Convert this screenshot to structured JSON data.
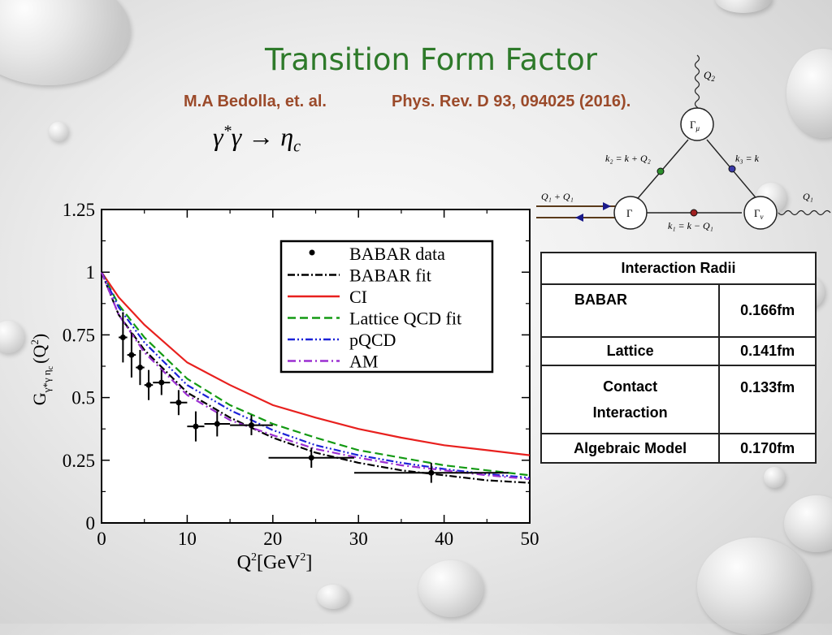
{
  "slide": {
    "title": "Transition Form Factor",
    "author": "M.A Bedolla, et. al.",
    "journal": "Phys. Rev. D 93, 094025 (2016).",
    "reaction": {
      "lhs": "γ",
      "lhs_star": "*",
      "mid": "γ → η",
      "sub": "c"
    }
  },
  "feynman": {
    "Q2": "Q",
    "Q2_sub": "2",
    "Gamma_mu": "Γ",
    "Gamma_mu_sub": "μ",
    "k2": "k₂ = k + Q₂",
    "k3": "k₃ = k",
    "k1": "k₁ = k − Q₁",
    "Q1Q2": "Q₁ + Q₁",
    "Q1": "Q₁",
    "Gamma": "Γ",
    "Gamma_nu": "Γ",
    "Gamma_nu_sub": "ν"
  },
  "table": {
    "header": "Interaction Radii",
    "rows": [
      {
        "label": "BABAR",
        "value": "0.166fm"
      },
      {
        "label": "Lattice",
        "value": "0.141fm"
      },
      {
        "label": "Contact Interaction",
        "value": "0.133fm"
      },
      {
        "label": "Algebraic Model",
        "value": "0.170fm"
      }
    ]
  },
  "chart_data": {
    "type": "line",
    "xlabel_base": "Q",
    "xlabel_sup": "2",
    "xlabel_rest": "[GeV",
    "xlabel_sup2": "2",
    "xlabel_end": "]",
    "ylabel_base": "G",
    "ylabel_sub": "γ*γ η",
    "ylabel_sub2": "c",
    "ylabel_arg": "(Q",
    "ylabel_sup": "2",
    "ylabel_end": ")",
    "xlim": [
      0,
      50
    ],
    "ylim": [
      0,
      1.25
    ],
    "xticks": [
      0,
      10,
      20,
      30,
      40,
      50
    ],
    "yticks": [
      0,
      0.25,
      0.5,
      0.75,
      1,
      1.25
    ],
    "ytick_labels": [
      "0",
      "0.25",
      "0.5",
      "0.75",
      "1",
      "1.25"
    ],
    "legend_position": "top-right",
    "series": [
      {
        "name": "BABAR fit",
        "color": "#000000",
        "dash": "9,3,2,3",
        "x": [
          0,
          2,
          5,
          10,
          15,
          20,
          25,
          30,
          35,
          40,
          45,
          50
        ],
        "y": [
          1.0,
          0.83,
          0.69,
          0.52,
          0.42,
          0.34,
          0.28,
          0.24,
          0.21,
          0.19,
          0.17,
          0.16
        ]
      },
      {
        "name": "CI",
        "color": "#e8201e",
        "dash": "",
        "x": [
          0,
          2,
          5,
          10,
          15,
          20,
          25,
          30,
          35,
          40,
          45,
          50
        ],
        "y": [
          1.0,
          0.9,
          0.79,
          0.64,
          0.55,
          0.47,
          0.42,
          0.375,
          0.34,
          0.31,
          0.29,
          0.27
        ]
      },
      {
        "name": "Lattice QCD fit",
        "color": "#139a13",
        "dash": "10,5",
        "x": [
          0,
          2,
          5,
          10,
          15,
          20,
          25,
          30,
          35,
          40,
          45,
          50
        ],
        "y": [
          1.0,
          0.87,
          0.74,
          0.575,
          0.47,
          0.395,
          0.34,
          0.29,
          0.26,
          0.23,
          0.21,
          0.19
        ]
      },
      {
        "name": "pQCD",
        "color": "#1c23d8",
        "dash": "9,3,2,3,2,3",
        "x": [
          0,
          2,
          5,
          10,
          15,
          20,
          25,
          30,
          35,
          40,
          45,
          50
        ],
        "y": [
          1.0,
          0.86,
          0.72,
          0.55,
          0.45,
          0.37,
          0.31,
          0.27,
          0.24,
          0.215,
          0.195,
          0.18
        ]
      },
      {
        "name": "AM",
        "color": "#9b2fd1",
        "dash": "10,4,2,4",
        "x": [
          0,
          2,
          5,
          10,
          15,
          20,
          25,
          30,
          35,
          40,
          45,
          50
        ],
        "y": [
          1.0,
          0.83,
          0.68,
          0.51,
          0.41,
          0.35,
          0.295,
          0.26,
          0.23,
          0.21,
          0.19,
          0.175
        ]
      }
    ],
    "points": {
      "name": "BABAR data",
      "data": [
        {
          "x": 2.5,
          "y": 0.74,
          "ex": 0.5,
          "ey": 0.1
        },
        {
          "x": 3.5,
          "y": 0.67,
          "ex": 0.5,
          "ey": 0.09
        },
        {
          "x": 4.5,
          "y": 0.62,
          "ex": 0.5,
          "ey": 0.07
        },
        {
          "x": 5.5,
          "y": 0.55,
          "ex": 0.5,
          "ey": 0.06
        },
        {
          "x": 7.0,
          "y": 0.56,
          "ex": 1.0,
          "ey": 0.05
        },
        {
          "x": 9.0,
          "y": 0.48,
          "ex": 1.0,
          "ey": 0.05
        },
        {
          "x": 11.0,
          "y": 0.385,
          "ex": 1.0,
          "ey": 0.06
        },
        {
          "x": 13.5,
          "y": 0.395,
          "ex": 1.5,
          "ey": 0.05
        },
        {
          "x": 17.5,
          "y": 0.39,
          "ex": 2.5,
          "ey": 0.04
        },
        {
          "x": 24.5,
          "y": 0.26,
          "ex": 5.0,
          "ey": 0.04
        },
        {
          "x": 38.5,
          "y": 0.2,
          "ex": 9.0,
          "ey": 0.04
        }
      ]
    }
  }
}
